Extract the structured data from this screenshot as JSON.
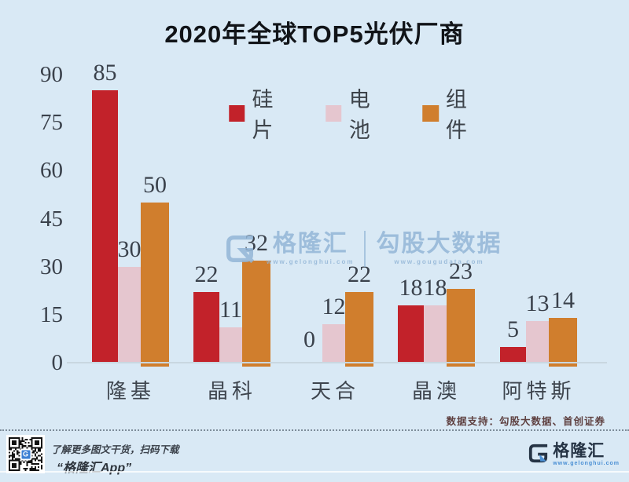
{
  "title": "2020年全球TOP5光伏厂商",
  "chart_data": {
    "type": "bar",
    "categories": [
      "隆基",
      "晶科",
      "天合",
      "晶澳",
      "阿特斯"
    ],
    "series": [
      {
        "name": "硅片",
        "color": "#c2222a",
        "values": [
          85,
          22,
          0,
          18,
          5
        ]
      },
      {
        "name": "电池",
        "color": "#e5c6cf",
        "values": [
          30,
          11,
          12,
          18,
          13
        ]
      },
      {
        "name": "组件",
        "color": "#d07e2d",
        "values": [
          50,
          32,
          22,
          23,
          14
        ]
      }
    ],
    "ylim": [
      0,
      90
    ],
    "yticks": [
      90,
      75,
      60,
      45,
      30,
      15,
      0
    ],
    "grid": false,
    "legend_position": "top-center",
    "value_labels": true
  },
  "watermark": {
    "brand": "格隆汇",
    "brand_url": "www.gelonghui.com",
    "partner": "勾股大数据",
    "partner_url": "www.gougudata.com"
  },
  "footer": {
    "source_note": "数据支持：勾股大数据、首创证券",
    "qr_caption_line1": "了解更多图文干货，扫码下载",
    "qr_caption_line2": "“格隆汇App”",
    "logo_text": "格隆汇",
    "logo_url": "www.gelonghui.com",
    "qr_badge_letter": "G"
  },
  "colors": {
    "background": "#d9e9f5",
    "bar_red": "#c2222a",
    "bar_pink": "#e5c6cf",
    "bar_orange": "#d07e2d",
    "baseline": "#c9d7e0",
    "text_dark": "#3a414b",
    "watermark_blue": "#92b5d6",
    "logo_navy": "#263445",
    "logo_blue": "#4a8fd4",
    "source_note_color": "#5e4040"
  }
}
